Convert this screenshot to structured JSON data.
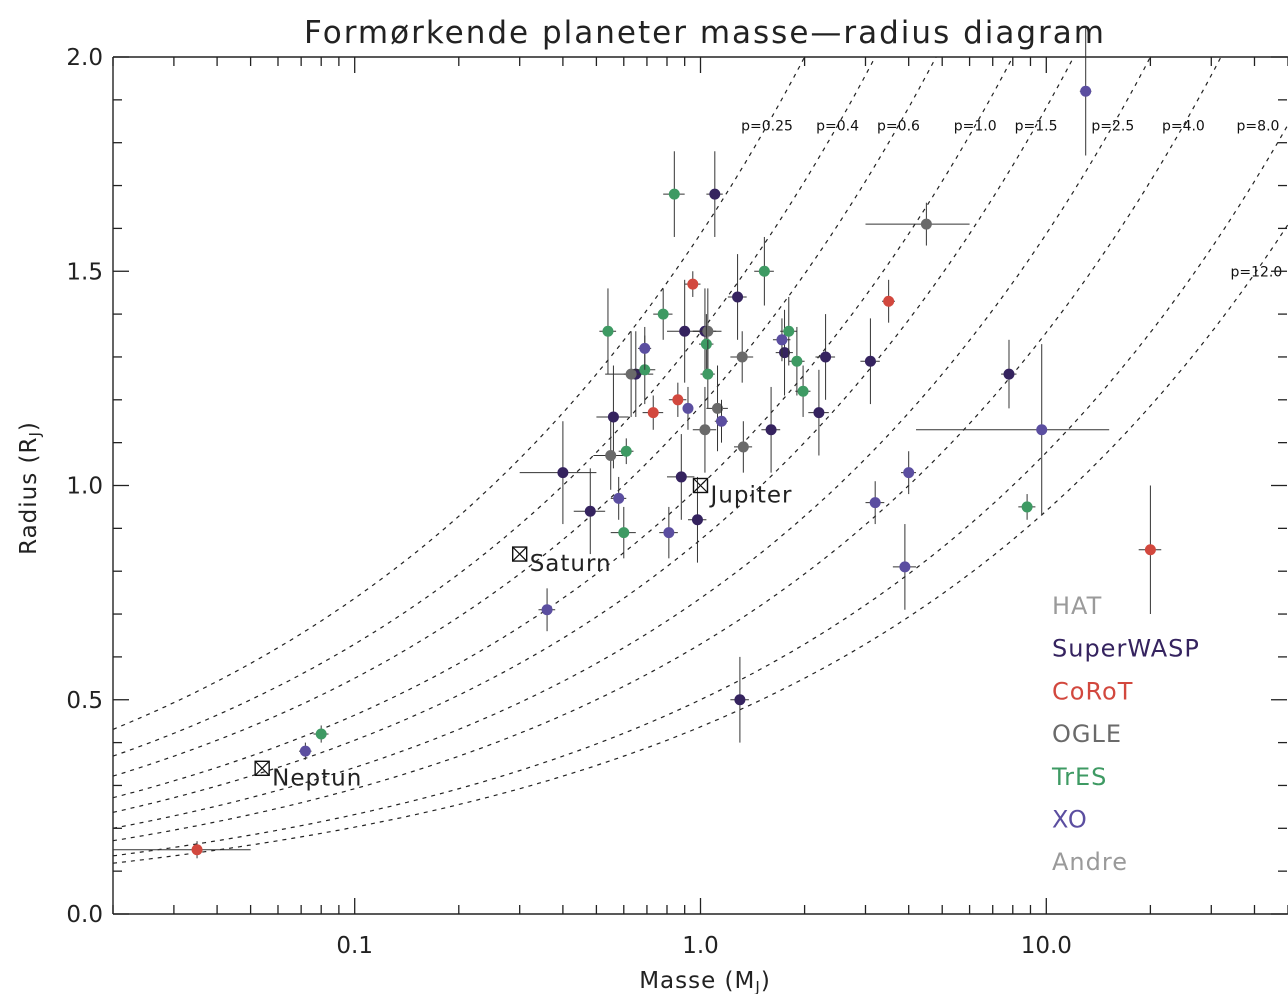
{
  "chart_data": {
    "type": "scatter",
    "title": "Formørkende planeter masse—radius diagram",
    "xlabel": "Masse (M",
    "xlabel_sub": "J",
    "ylabel": "Radius (R",
    "ylabel_sub": "J",
    "xscale": "log",
    "xlim": [
      0.02,
      50
    ],
    "ylim": [
      0.0,
      2.0
    ],
    "x_ticks": [
      {
        "value": 0.1,
        "label": "0.1"
      },
      {
        "value": 1.0,
        "label": "1.0"
      },
      {
        "value": 10.0,
        "label": "10.0"
      }
    ],
    "y_ticks": [
      {
        "value": 0.0,
        "label": "0.0"
      },
      {
        "value": 0.5,
        "label": "0.5"
      },
      {
        "value": 1.0,
        "label": "1.0"
      },
      {
        "value": 1.5,
        "label": "1.5"
      },
      {
        "value": 2.0,
        "label": "2.0"
      }
    ],
    "density_curves": [
      {
        "label": "p=0.25",
        "rho": 0.25
      },
      {
        "label": "p=0.4",
        "rho": 0.4
      },
      {
        "label": "p=0.6",
        "rho": 0.6
      },
      {
        "label": "p=1.0",
        "rho": 1.0
      },
      {
        "label": "p=1.5",
        "rho": 1.5
      },
      {
        "label": "p=2.5",
        "rho": 2.5
      },
      {
        "label": "p=4.0",
        "rho": 4.0
      },
      {
        "label": "p=8.0",
        "rho": 8.0
      },
      {
        "label": "p=12.0",
        "rho": 12.0
      }
    ],
    "solar_planets": [
      {
        "name": "Jupiter",
        "x": 1.0,
        "y": 1.0
      },
      {
        "name": "Saturn",
        "x": 0.3,
        "y": 0.84
      },
      {
        "name": "Neptun",
        "x": 0.054,
        "y": 0.34
      }
    ],
    "series": [
      {
        "name": "HAT",
        "color": "#9a9a9a",
        "points": []
      },
      {
        "name": "SuperWASP",
        "color": "#35235f",
        "points": [
          {
            "x": 1.1,
            "y": 1.68,
            "xerr": 0.06,
            "yerr": 0.1
          },
          {
            "x": 0.56,
            "y": 1.16,
            "xerr": 0.06,
            "yerr": 0.12
          },
          {
            "x": 0.9,
            "y": 1.36,
            "xerr": 0.1,
            "yerr": 0.12
          },
          {
            "x": 1.28,
            "y": 1.44,
            "xerr": 0.08,
            "yerr": 0.1
          },
          {
            "x": 1.03,
            "y": 1.36,
            "xerr": 0.08,
            "yerr": 0.1
          },
          {
            "x": 1.75,
            "y": 1.31,
            "xerr": 0.1,
            "yerr": 0.1
          },
          {
            "x": 2.3,
            "y": 1.3,
            "xerr": 0.15,
            "yerr": 0.1
          },
          {
            "x": 3.1,
            "y": 1.29,
            "xerr": 0.2,
            "yerr": 0.1
          },
          {
            "x": 2.2,
            "y": 1.17,
            "xerr": 0.15,
            "yerr": 0.1
          },
          {
            "x": 1.6,
            "y": 1.13,
            "xerr": 0.1,
            "yerr": 0.1
          },
          {
            "x": 0.4,
            "y": 1.03,
            "xerr": 0.1,
            "yerr": 0.12
          },
          {
            "x": 0.48,
            "y": 0.94,
            "xerr": 0.05,
            "yerr": 0.1
          },
          {
            "x": 0.88,
            "y": 1.02,
            "xerr": 0.08,
            "yerr": 0.1
          },
          {
            "x": 0.98,
            "y": 0.92,
            "xerr": 0.06,
            "yerr": 0.1
          },
          {
            "x": 7.8,
            "y": 1.26,
            "xerr": 0.4,
            "yerr": 0.08
          },
          {
            "x": 1.3,
            "y": 0.5,
            "xerr": 0.08,
            "yerr": 0.1
          },
          {
            "x": 0.65,
            "y": 1.26,
            "xerr": 0.05,
            "yerr": 0.1
          }
        ]
      },
      {
        "name": "CoRoT",
        "color": "#d2483e",
        "points": [
          {
            "x": 0.035,
            "y": 0.15,
            "xerr": 0.015,
            "yerr": 0.02
          },
          {
            "x": 0.95,
            "y": 1.47,
            "xerr": 0.05,
            "yerr": 0.03
          },
          {
            "x": 0.73,
            "y": 1.17,
            "xerr": 0.05,
            "yerr": 0.04
          },
          {
            "x": 0.86,
            "y": 1.2,
            "xerr": 0.05,
            "yerr": 0.04
          },
          {
            "x": 3.5,
            "y": 1.43,
            "xerr": 0.15,
            "yerr": 0.05
          },
          {
            "x": 20.0,
            "y": 0.85,
            "xerr": 1.5,
            "yerr": 0.15
          }
        ]
      },
      {
        "name": "OGLE",
        "color": "#6a6a6a",
        "points": [
          {
            "x": 0.63,
            "y": 1.26,
            "xerr": 0.1,
            "yerr": 0.1
          },
          {
            "x": 0.55,
            "y": 1.07,
            "xerr": 0.06,
            "yerr": 0.08
          },
          {
            "x": 1.03,
            "y": 1.13,
            "xerr": 0.08,
            "yerr": 0.1
          },
          {
            "x": 1.05,
            "y": 1.36,
            "xerr": 0.1,
            "yerr": 0.1
          },
          {
            "x": 1.12,
            "y": 1.18,
            "xerr": 0.08,
            "yerr": 0.1
          },
          {
            "x": 1.32,
            "y": 1.3,
            "xerr": 0.1,
            "yerr": 0.06
          },
          {
            "x": 1.33,
            "y": 1.09,
            "xerr": 0.08,
            "yerr": 0.06
          },
          {
            "x": 4.5,
            "y": 1.61,
            "xerr": 1.5,
            "yerr": 0.05
          }
        ]
      },
      {
        "name": "TrES",
        "color": "#3e9a63",
        "points": [
          {
            "x": 0.84,
            "y": 1.68,
            "xerr": 0.06,
            "yerr": 0.1
          },
          {
            "x": 0.54,
            "y": 1.36,
            "xerr": 0.03,
            "yerr": 0.1
          },
          {
            "x": 0.78,
            "y": 1.4,
            "xerr": 0.05,
            "yerr": 0.06
          },
          {
            "x": 0.69,
            "y": 1.27,
            "xerr": 0.05,
            "yerr": 0.08
          },
          {
            "x": 1.04,
            "y": 1.33,
            "xerr": 0.05,
            "yerr": 0.07
          },
          {
            "x": 1.05,
            "y": 1.26,
            "xerr": 0.05,
            "yerr": 0.08
          },
          {
            "x": 1.53,
            "y": 1.5,
            "xerr": 0.1,
            "yerr": 0.08
          },
          {
            "x": 1.8,
            "y": 1.36,
            "xerr": 0.1,
            "yerr": 0.08
          },
          {
            "x": 1.9,
            "y": 1.29,
            "xerr": 0.1,
            "yerr": 0.08
          },
          {
            "x": 1.98,
            "y": 1.22,
            "xerr": 0.1,
            "yerr": 0.06
          },
          {
            "x": 0.61,
            "y": 1.08,
            "xerr": 0.03,
            "yerr": 0.03
          },
          {
            "x": 0.6,
            "y": 0.89,
            "xerr": 0.05,
            "yerr": 0.06
          },
          {
            "x": 0.08,
            "y": 0.42,
            "xerr": 0.004,
            "yerr": 0.02
          },
          {
            "x": 8.8,
            "y": 0.95,
            "xerr": 0.5,
            "yerr": 0.03
          }
        ]
      },
      {
        "name": "XO",
        "color": "#5b4ea0",
        "points": [
          {
            "x": 0.69,
            "y": 1.32,
            "xerr": 0.03,
            "yerr": 0.05
          },
          {
            "x": 0.92,
            "y": 1.18,
            "xerr": 0.03,
            "yerr": 0.05
          },
          {
            "x": 1.72,
            "y": 1.34,
            "xerr": 0.1,
            "yerr": 0.05
          },
          {
            "x": 1.15,
            "y": 1.15,
            "xerr": 0.05,
            "yerr": 0.05
          },
          {
            "x": 0.58,
            "y": 0.97,
            "xerr": 0.03,
            "yerr": 0.05
          },
          {
            "x": 0.81,
            "y": 0.89,
            "xerr": 0.05,
            "yerr": 0.06
          },
          {
            "x": 0.36,
            "y": 0.71,
            "xerr": 0.02,
            "yerr": 0.05
          },
          {
            "x": 3.2,
            "y": 0.96,
            "xerr": 0.2,
            "yerr": 0.05
          },
          {
            "x": 4.0,
            "y": 1.03,
            "xerr": 0.2,
            "yerr": 0.05
          },
          {
            "x": 3.9,
            "y": 0.81,
            "xerr": 0.3,
            "yerr": 0.1
          },
          {
            "x": 9.7,
            "y": 1.13,
            "xerr": 5.5,
            "yerr": 0.2
          },
          {
            "x": 13.0,
            "y": 1.92,
            "xerr": 0.5,
            "yerr": 0.15
          },
          {
            "x": 0.072,
            "y": 0.38,
            "xerr": 0.003,
            "yerr": 0.02
          }
        ]
      },
      {
        "name": "Andre",
        "color": "#9a9a9a",
        "points": []
      }
    ]
  }
}
